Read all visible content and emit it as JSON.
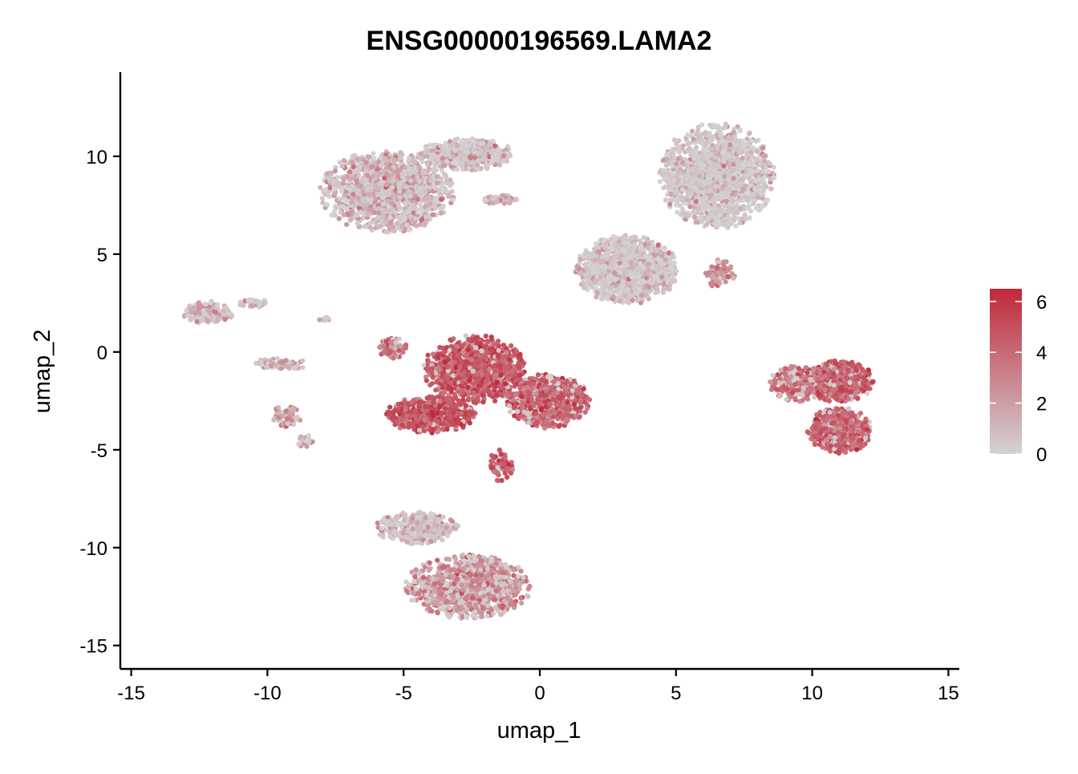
{
  "chart_data": {
    "type": "scatter",
    "title": "ENSG00000196569.LAMA2",
    "xlabel": "umap_1",
    "ylabel": "umap_2",
    "xlim": [
      -15.4,
      15.4
    ],
    "ylim": [
      -16.2,
      14.3
    ],
    "x_ticks": [
      -15,
      -10,
      -5,
      0,
      5,
      10,
      15
    ],
    "y_ticks": [
      -15,
      -10,
      -5,
      0,
      5,
      10
    ],
    "x_tick_labels": [
      "-15",
      "-10",
      "-5",
      "0",
      "5",
      "10",
      "15"
    ],
    "y_tick_labels": [
      "-15",
      "-10",
      "-5",
      "0",
      "5",
      "10"
    ],
    "grid": false,
    "colorscale": {
      "low_color": "#d3d3d3",
      "high_color": "#c0283b",
      "min": 0,
      "max": 6.5,
      "ticks": [
        0,
        2,
        4,
        6
      ],
      "tick_labels": [
        "0",
        "2",
        "4",
        "6"
      ],
      "legend_position": "right"
    },
    "point_color_default": "#cccccc",
    "clusters": [
      {
        "center": [
          -5.6,
          8.2
        ],
        "spread": [
          2.1,
          1.8
        ],
        "shape": "blob",
        "n": 1400,
        "mean_expr": 1.4
      },
      {
        "center": [
          -2.7,
          10.1
        ],
        "spread": [
          1.5,
          0.7
        ],
        "shape": "blob",
        "n": 500,
        "mean_expr": 1.2
      },
      {
        "center": [
          -1.5,
          7.8
        ],
        "spread": [
          0.6,
          0.2
        ],
        "shape": "blob",
        "n": 70,
        "mean_expr": 1.6
      },
      {
        "center": [
          6.5,
          9.0
        ],
        "spread": [
          1.8,
          2.3
        ],
        "shape": "blob",
        "n": 1500,
        "mean_expr": 0.7
      },
      {
        "center": [
          3.2,
          4.2
        ],
        "spread": [
          1.6,
          1.5
        ],
        "shape": "blob",
        "n": 1200,
        "mean_expr": 0.9
      },
      {
        "center": [
          6.6,
          4.0
        ],
        "spread": [
          0.5,
          0.6
        ],
        "shape": "blob",
        "n": 80,
        "mean_expr": 2.8
      },
      {
        "center": [
          -12.2,
          2.0
        ],
        "spread": [
          0.8,
          0.5
        ],
        "shape": "blob",
        "n": 160,
        "mean_expr": 1.6
      },
      {
        "center": [
          -10.5,
          2.5
        ],
        "spread": [
          0.5,
          0.2
        ],
        "shape": "blob",
        "n": 40,
        "mean_expr": 1.8
      },
      {
        "center": [
          -9.5,
          -0.6
        ],
        "spread": [
          0.9,
          0.25
        ],
        "shape": "blob",
        "n": 90,
        "mean_expr": 2.0
      },
      {
        "center": [
          -9.3,
          -3.3
        ],
        "spread": [
          0.5,
          0.5
        ],
        "shape": "blob",
        "n": 70,
        "mean_expr": 2.2
      },
      {
        "center": [
          -8.6,
          -4.6
        ],
        "spread": [
          0.3,
          0.3
        ],
        "shape": "blob",
        "n": 25,
        "mean_expr": 2.2
      },
      {
        "center": [
          -7.9,
          1.7
        ],
        "spread": [
          0.2,
          0.1
        ],
        "shape": "blob",
        "n": 10,
        "mean_expr": 2.0
      },
      {
        "center": [
          -5.4,
          0.2
        ],
        "spread": [
          0.45,
          0.45
        ],
        "shape": "blob",
        "n": 90,
        "mean_expr": 3.6
      },
      {
        "center": [
          -2.4,
          -0.9
        ],
        "spread": [
          1.6,
          1.5
        ],
        "shape": "blob",
        "n": 1300,
        "mean_expr": 4.6
      },
      {
        "center": [
          -4.0,
          -3.2
        ],
        "spread": [
          1.4,
          0.8
        ],
        "shape": "blob",
        "n": 700,
        "mean_expr": 4.8
      },
      {
        "center": [
          0.3,
          -2.5
        ],
        "spread": [
          1.3,
          1.2
        ],
        "shape": "blob",
        "n": 800,
        "mean_expr": 4.1
      },
      {
        "center": [
          -1.4,
          -5.8
        ],
        "spread": [
          0.4,
          0.7
        ],
        "shape": "blob",
        "n": 80,
        "mean_expr": 4.4
      },
      {
        "center": [
          -2.6,
          -12.0
        ],
        "spread": [
          2.0,
          1.4
        ],
        "shape": "blob",
        "n": 1200,
        "mean_expr": 2.5
      },
      {
        "center": [
          -4.5,
          -9.0
        ],
        "spread": [
          1.3,
          0.7
        ],
        "shape": "blob",
        "n": 400,
        "mean_expr": 1.4
      },
      {
        "center": [
          11.0,
          -1.5
        ],
        "spread": [
          1.1,
          0.9
        ],
        "shape": "blob",
        "n": 700,
        "mean_expr": 4.3
      },
      {
        "center": [
          11.0,
          -4.0
        ],
        "spread": [
          1.0,
          1.0
        ],
        "shape": "blob",
        "n": 600,
        "mean_expr": 4.1
      },
      {
        "center": [
          9.5,
          -1.6
        ],
        "spread": [
          0.9,
          0.8
        ],
        "shape": "blob",
        "n": 250,
        "mean_expr": 3.4
      }
    ]
  }
}
